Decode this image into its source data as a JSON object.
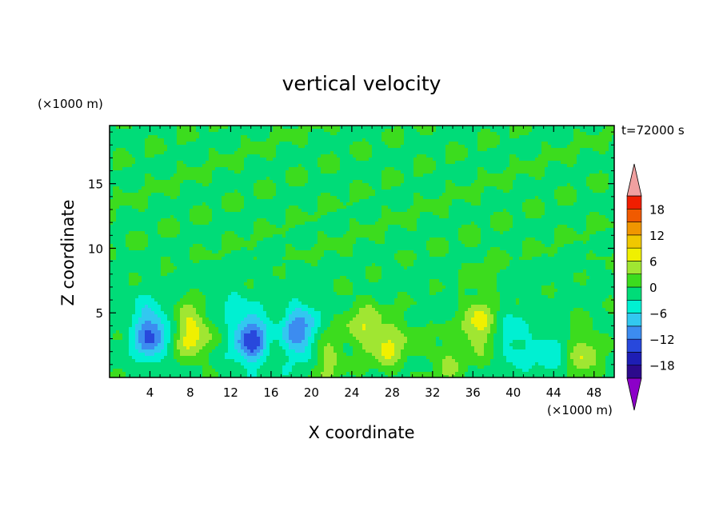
{
  "chart_data": {
    "type": "heatmap",
    "title": "vertical velocity",
    "xlabel": "X coordinate",
    "ylabel": "Z coordinate",
    "x_unit": "(×1000 m)",
    "y_unit": "(×1000 m)",
    "time_label": "t=72000 s",
    "xlim": [
      0,
      50
    ],
    "ylim": [
      0,
      19.5
    ],
    "x_ticks": [
      4,
      8,
      12,
      16,
      20,
      24,
      28,
      32,
      36,
      40,
      44,
      48
    ],
    "y_ticks": [
      5,
      10,
      15
    ],
    "colorbar": {
      "levels": [
        -21,
        -18,
        -15,
        -12,
        -9,
        -6,
        -3,
        0,
        3,
        6,
        9,
        12,
        15,
        18,
        21
      ],
      "tick_labels": [
        -18,
        -12,
        -6,
        0,
        6,
        12,
        18
      ],
      "colors": [
        "#8c00c8",
        "#2c0a8c",
        "#1e1eb4",
        "#2848dc",
        "#3c8cf0",
        "#32c8f0",
        "#00f0d2",
        "#00dc78",
        "#3cdc1e",
        "#a0e632",
        "#f0f000",
        "#f0c800",
        "#f09600",
        "#f05a00",
        "#f01e00",
        "#f0a0a0"
      ]
    },
    "features": [
      {
        "x": 4.0,
        "z": 3.4,
        "amp": -12
      },
      {
        "x": 8.2,
        "z": 3.5,
        "amp": 9
      },
      {
        "x": 14.0,
        "z": 3.0,
        "amp": -13
      },
      {
        "x": 18.8,
        "z": 3.5,
        "amp": -11
      },
      {
        "x": 21.5,
        "z": 1.5,
        "amp": 5
      },
      {
        "x": 25.0,
        "z": 4.0,
        "amp": 6
      },
      {
        "x": 27.5,
        "z": 2.5,
        "amp": 7
      },
      {
        "x": 33.5,
        "z": 1.2,
        "amp": 4
      },
      {
        "x": 36.5,
        "z": 4.0,
        "amp": 8
      },
      {
        "x": 40.0,
        "z": 3.0,
        "amp": -4
      },
      {
        "x": 43.5,
        "z": 1.5,
        "amp": -4
      },
      {
        "x": 47.0,
        "z": 1.8,
        "amp": 6
      },
      {
        "x": 30.0,
        "z": 3.0,
        "amp": 2
      },
      {
        "x": 11.5,
        "z": 6.0,
        "amp": -2
      },
      {
        "x": 37.0,
        "z": 8.0,
        "amp": 2
      }
    ]
  }
}
